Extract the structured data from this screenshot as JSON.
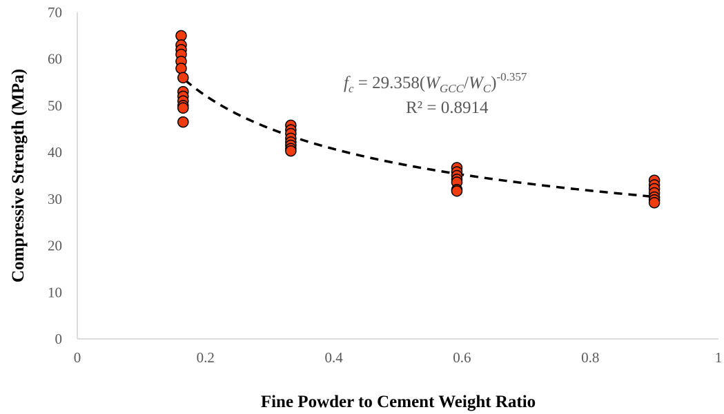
{
  "chart_data": {
    "type": "scatter",
    "xlabel": "Fine Powder to Cement Weight Ratio",
    "ylabel": "Compressive Strength (MPa)",
    "xlim": [
      0,
      1
    ],
    "ylim": [
      0,
      70
    ],
    "xticks": [
      "0",
      "0.2",
      "0.4",
      "0.6",
      "0.8",
      "1"
    ],
    "yticks": [
      "0",
      "10",
      "20",
      "30",
      "40",
      "50",
      "60",
      "70"
    ],
    "grid": false,
    "marker_color": "#F03C0F",
    "marker_edge": "#000000",
    "trendline": {
      "type": "power",
      "coefficient": 29.358,
      "exponent": -0.357,
      "x_range": [
        0.168,
        0.9
      ],
      "style": "dashed",
      "color": "#000000",
      "equation": {
        "lhs_main": "f",
        "lhs_sub": "c",
        "rhs_prefix": " = 29.358(",
        "w1_main": "W",
        "w1_sub": "GCC",
        "slash": "/",
        "w2_main": "W",
        "w2_sub": "C",
        "rhs_suffix": ")",
        "exponent_text": "-0.357"
      },
      "r_squared_text": "R² = 0.8914"
    },
    "points": [
      {
        "x": 0.162,
        "y": 65.0
      },
      {
        "x": 0.162,
        "y": 63.0
      },
      {
        "x": 0.162,
        "y": 62.0
      },
      {
        "x": 0.162,
        "y": 61.0
      },
      {
        "x": 0.162,
        "y": 59.5
      },
      {
        "x": 0.162,
        "y": 58.0
      },
      {
        "x": 0.165,
        "y": 56.0
      },
      {
        "x": 0.165,
        "y": 53.0
      },
      {
        "x": 0.165,
        "y": 52.0
      },
      {
        "x": 0.165,
        "y": 51.0
      },
      {
        "x": 0.165,
        "y": 50.0
      },
      {
        "x": 0.165,
        "y": 49.5
      },
      {
        "x": 0.165,
        "y": 46.5
      },
      {
        "x": 0.333,
        "y": 45.8
      },
      {
        "x": 0.333,
        "y": 44.8
      },
      {
        "x": 0.333,
        "y": 44.0
      },
      {
        "x": 0.333,
        "y": 43.0
      },
      {
        "x": 0.333,
        "y": 42.2
      },
      {
        "x": 0.333,
        "y": 41.5
      },
      {
        "x": 0.333,
        "y": 40.8
      },
      {
        "x": 0.333,
        "y": 40.3
      },
      {
        "x": 0.592,
        "y": 36.7
      },
      {
        "x": 0.592,
        "y": 35.8
      },
      {
        "x": 0.592,
        "y": 35.0
      },
      {
        "x": 0.592,
        "y": 34.2
      },
      {
        "x": 0.592,
        "y": 33.6
      },
      {
        "x": 0.592,
        "y": 32.0
      },
      {
        "x": 0.592,
        "y": 31.7
      },
      {
        "x": 0.9,
        "y": 34.0
      },
      {
        "x": 0.9,
        "y": 33.0
      },
      {
        "x": 0.9,
        "y": 32.2
      },
      {
        "x": 0.9,
        "y": 31.3
      },
      {
        "x": 0.9,
        "y": 30.4
      },
      {
        "x": 0.9,
        "y": 29.8
      },
      {
        "x": 0.9,
        "y": 29.2
      }
    ]
  }
}
